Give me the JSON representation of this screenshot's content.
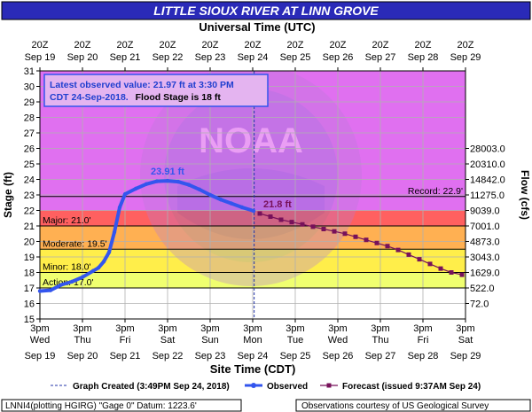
{
  "header": {
    "title": "LITTLE SIOUX RIVER AT LINN GROVE",
    "top_axis_title": "Universal Time (UTC)"
  },
  "info_box": {
    "line1": "Latest observed value: 21.97 ft at 3:30 PM",
    "line2_prefix": "CDT 24-Sep-2018.",
    "line2_suffix": "Flood Stage is 18 ft"
  },
  "footer": {
    "graph_created": "Graph Created (3:49PM Sep 24, 2018)",
    "observed": "Observed",
    "forecast": "Forecast (issued 9:37AM Sep 24)",
    "station": "LNNI4(plotting HGIRG) \"Gage 0\" Datum: 1223.6'",
    "courtesy": "Observations courtesy of US Geological Survey"
  },
  "colors": {
    "title_bg": "#2a2ab8",
    "major": "#ff6060",
    "moderate": "#ffb052",
    "minor": "#ffee4a",
    "action": "#f0ff70",
    "above_major": "#e070f0",
    "normal": "#ffffff",
    "observed": "#3355ee",
    "forecast": "#77115a",
    "grid": "#b0b0b0"
  },
  "chart_data": {
    "type": "line",
    "xlabel": "Site Time (CDT)",
    "ylabel": "Stage (ft)",
    "y2label": "Flow (cfs)",
    "ylim": [
      15,
      31
    ],
    "x_range": [
      "2018-09-19T15:00",
      "2018-09-29T15:00"
    ],
    "y_ticks": [
      15,
      16,
      17,
      18,
      19,
      20,
      21,
      22,
      23,
      24,
      25,
      26,
      27,
      28,
      29,
      30,
      31
    ],
    "y2_ticks": [
      {
        "stage": 16,
        "label": "72.0"
      },
      {
        "stage": 17,
        "label": "522.0"
      },
      {
        "stage": 18,
        "label": "1629.0"
      },
      {
        "stage": 19,
        "label": "3043.0"
      },
      {
        "stage": 20,
        "label": "4873.0"
      },
      {
        "stage": 21,
        "label": "7001.0"
      },
      {
        "stage": 22,
        "label": "9039.0"
      },
      {
        "stage": 23,
        "label": "11275.0"
      },
      {
        "stage": 24,
        "label": "14842.0"
      },
      {
        "stage": 25,
        "label": "20310.0"
      },
      {
        "stage": 26,
        "label": "28003.0"
      }
    ],
    "x_ticks_bottom": [
      {
        "t": "2018-09-19T15:00",
        "time": "3pm",
        "day": "Wed",
        "date": "Sep 19"
      },
      {
        "t": "2018-09-20T15:00",
        "time": "3pm",
        "day": "Thu",
        "date": "Sep 20"
      },
      {
        "t": "2018-09-21T15:00",
        "time": "3pm",
        "day": "Fri",
        "date": "Sep 21"
      },
      {
        "t": "2018-09-22T15:00",
        "time": "3pm",
        "day": "Sat",
        "date": "Sep 22"
      },
      {
        "t": "2018-09-23T15:00",
        "time": "3pm",
        "day": "Sun",
        "date": "Sep 23"
      },
      {
        "t": "2018-09-24T15:00",
        "time": "3pm",
        "day": "Mon",
        "date": "Sep 24"
      },
      {
        "t": "2018-09-25T15:00",
        "time": "3pm",
        "day": "Tue",
        "date": "Sep 25"
      },
      {
        "t": "2018-09-26T15:00",
        "time": "3pm",
        "day": "Wed",
        "date": "Sep 26"
      },
      {
        "t": "2018-09-27T15:00",
        "time": "3pm",
        "day": "Thu",
        "date": "Sep 27"
      },
      {
        "t": "2018-09-28T15:00",
        "time": "3pm",
        "day": "Fri",
        "date": "Sep 28"
      },
      {
        "t": "2018-09-29T15:00",
        "time": "3pm",
        "day": "Sat",
        "date": "Sep 29"
      }
    ],
    "x_ticks_top": [
      {
        "t": "2018-09-19T15:00",
        "time": "20Z",
        "date": "Sep 19"
      },
      {
        "t": "2018-09-20T15:00",
        "time": "20Z",
        "date": "Sep 20"
      },
      {
        "t": "2018-09-21T15:00",
        "time": "20Z",
        "date": "Sep 21"
      },
      {
        "t": "2018-09-22T15:00",
        "time": "20Z",
        "date": "Sep 22"
      },
      {
        "t": "2018-09-23T15:00",
        "time": "20Z",
        "date": "Sep 23"
      },
      {
        "t": "2018-09-24T15:00",
        "time": "20Z",
        "date": "Sep 24"
      },
      {
        "t": "2018-09-25T15:00",
        "time": "20Z",
        "date": "Sep 25"
      },
      {
        "t": "2018-09-26T15:00",
        "time": "20Z",
        "date": "Sep 26"
      },
      {
        "t": "2018-09-27T15:00",
        "time": "20Z",
        "date": "Sep 27"
      },
      {
        "t": "2018-09-28T15:00",
        "time": "20Z",
        "date": "Sep 28"
      },
      {
        "t": "2018-09-29T15:00",
        "time": "20Z",
        "date": "Sep 29"
      }
    ],
    "categories": [
      {
        "name": "Major",
        "label": "Major: 21.0'",
        "from": 21,
        "to": 22
      },
      {
        "name": "Moderate",
        "label": "Moderate: 19.5'",
        "from": 19.5,
        "to": 21
      },
      {
        "name": "Minor",
        "label": "Minor: 18.0'",
        "from": 18,
        "to": 19.5
      },
      {
        "name": "Action",
        "label": "Action: 17.0'",
        "from": 17,
        "to": 18
      }
    ],
    "record": {
      "value": 22.9,
      "label": "Record: 22.9'"
    },
    "graph_created": "2018-09-24T15:49",
    "series": [
      {
        "name": "Observed",
        "points": [
          {
            "x": "2018-09-19T15:00",
            "y": 16.8
          },
          {
            "x": "2018-09-19T21:00",
            "y": 16.85
          },
          {
            "x": "2018-09-20T03:00",
            "y": 17.2
          },
          {
            "x": "2018-09-20T09:00",
            "y": 17.4
          },
          {
            "x": "2018-09-20T15:00",
            "y": 17.7
          },
          {
            "x": "2018-09-20T21:00",
            "y": 18.1
          },
          {
            "x": "2018-09-21T00:00",
            "y": 18.3
          },
          {
            "x": "2018-09-21T03:00",
            "y": 18.7
          },
          {
            "x": "2018-09-21T06:00",
            "y": 19.3
          },
          {
            "x": "2018-09-21T09:00",
            "y": 20.6
          },
          {
            "x": "2018-09-21T12:00",
            "y": 22.2
          },
          {
            "x": "2018-09-21T15:00",
            "y": 23.05
          },
          {
            "x": "2018-09-21T21:00",
            "y": 23.4
          },
          {
            "x": "2018-09-22T03:00",
            "y": 23.7
          },
          {
            "x": "2018-09-22T09:00",
            "y": 23.88
          },
          {
            "x": "2018-09-22T15:00",
            "y": 23.91
          },
          {
            "x": "2018-09-22T21:00",
            "y": 23.85
          },
          {
            "x": "2018-09-23T03:00",
            "y": 23.65
          },
          {
            "x": "2018-09-23T09:00",
            "y": 23.35
          },
          {
            "x": "2018-09-23T15:00",
            "y": 23.0
          },
          {
            "x": "2018-09-23T21:00",
            "y": 22.7
          },
          {
            "x": "2018-09-24T03:00",
            "y": 22.45
          },
          {
            "x": "2018-09-24T09:00",
            "y": 22.2
          },
          {
            "x": "2018-09-24T15:30",
            "y": 21.97
          }
        ]
      },
      {
        "name": "Forecast",
        "points": [
          {
            "x": "2018-09-24T19:00",
            "y": 21.8
          },
          {
            "x": "2018-09-25T01:00",
            "y": 21.6
          },
          {
            "x": "2018-09-25T07:00",
            "y": 21.4
          },
          {
            "x": "2018-09-25T13:00",
            "y": 21.25
          },
          {
            "x": "2018-09-25T19:00",
            "y": 21.1
          },
          {
            "x": "2018-09-26T01:00",
            "y": 20.95
          },
          {
            "x": "2018-09-26T07:00",
            "y": 20.8
          },
          {
            "x": "2018-09-26T13:00",
            "y": 20.65
          },
          {
            "x": "2018-09-26T19:00",
            "y": 20.5
          },
          {
            "x": "2018-09-27T01:00",
            "y": 20.3
          },
          {
            "x": "2018-09-27T07:00",
            "y": 20.1
          },
          {
            "x": "2018-09-27T13:00",
            "y": 19.9
          },
          {
            "x": "2018-09-27T19:00",
            "y": 19.7
          },
          {
            "x": "2018-09-28T01:00",
            "y": 19.45
          },
          {
            "x": "2018-09-28T07:00",
            "y": 19.15
          },
          {
            "x": "2018-09-28T13:00",
            "y": 18.85
          },
          {
            "x": "2018-09-28T19:00",
            "y": 18.55
          },
          {
            "x": "2018-09-29T01:00",
            "y": 18.25
          },
          {
            "x": "2018-09-29T07:00",
            "y": 18.0
          },
          {
            "x": "2018-09-29T13:00",
            "y": 17.85
          }
        ]
      }
    ],
    "annotations": [
      {
        "text": "23.91 ft",
        "x": "2018-09-22T15:00",
        "y": 23.91,
        "series": "Observed"
      },
      {
        "text": "21.8 ft",
        "x": "2018-09-24T19:00",
        "y": 21.8,
        "series": "Forecast"
      }
    ],
    "watermark": "NOAA",
    "grid": true
  }
}
